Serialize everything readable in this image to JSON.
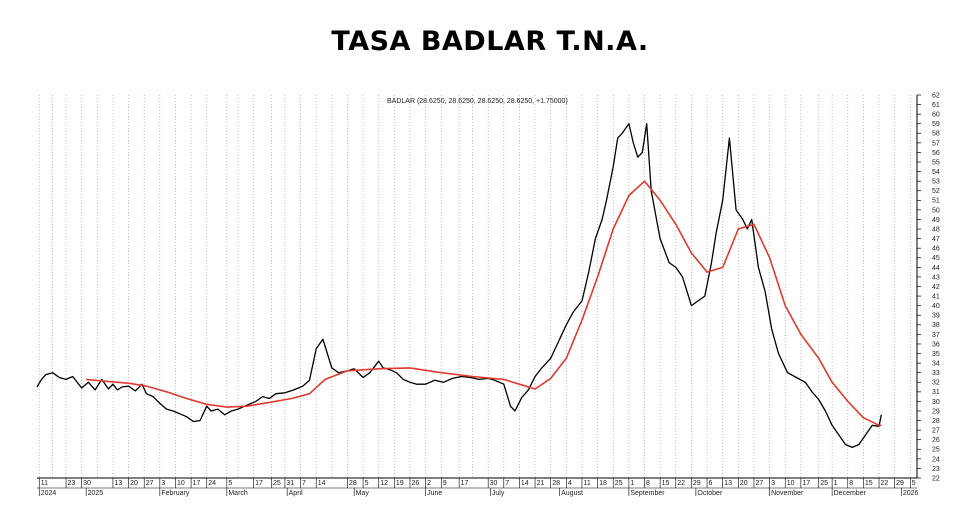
{
  "header": {
    "title": "TASA BADLAR T.N.A."
  },
  "colors": {
    "price_line": "#000000",
    "moving_average": "#e23a2e",
    "grid": "#9a9a9a",
    "axis": "#000000"
  },
  "chart_data": {
    "type": "line",
    "title": "TASA BADLAR T.N.A.",
    "legend": "BADLAR (28.6250, 28.6250, 28.6250, 28.6250, +1.75000)",
    "xlabel": "",
    "ylabel": "",
    "ylim": [
      22,
      62
    ],
    "y_ticks": [
      22,
      23,
      24,
      25,
      26,
      27,
      28,
      29,
      30,
      31,
      32,
      33,
      34,
      35,
      36,
      37,
      38,
      39,
      40,
      41,
      42,
      43,
      44,
      45,
      46,
      47,
      48,
      49,
      50,
      51,
      52,
      53,
      54,
      55,
      56,
      57,
      58,
      59,
      60,
      61,
      62
    ],
    "x_range": [
      "2024-12-10",
      "2026-01-08"
    ],
    "grid": true,
    "x_day_labels": [
      {
        "date": "2024-12-11",
        "label": "11"
      },
      {
        "date": "2024-12-23",
        "label": "23"
      },
      {
        "date": "2024-12-30",
        "label": "30"
      },
      {
        "date": "2025-01-13",
        "label": "13"
      },
      {
        "date": "2025-01-20",
        "label": "20"
      },
      {
        "date": "2025-01-27",
        "label": "27"
      },
      {
        "date": "2025-02-03",
        "label": "3"
      },
      {
        "date": "2025-02-10",
        "label": "10"
      },
      {
        "date": "2025-02-17",
        "label": "17"
      },
      {
        "date": "2025-02-24",
        "label": "24"
      },
      {
        "date": "2025-03-05",
        "label": "5"
      },
      {
        "date": "2025-03-17",
        "label": "17"
      },
      {
        "date": "2025-03-25",
        "label": "25"
      },
      {
        "date": "2025-03-31",
        "label": "31"
      },
      {
        "date": "2025-04-07",
        "label": "7"
      },
      {
        "date": "2025-04-14",
        "label": "14"
      },
      {
        "date": "2025-04-28",
        "label": "28"
      },
      {
        "date": "2025-05-05",
        "label": "5"
      },
      {
        "date": "2025-05-12",
        "label": "12"
      },
      {
        "date": "2025-05-19",
        "label": "19"
      },
      {
        "date": "2025-05-26",
        "label": "26"
      },
      {
        "date": "2025-06-02",
        "label": "2"
      },
      {
        "date": "2025-06-09",
        "label": "9"
      },
      {
        "date": "2025-06-17",
        "label": "17"
      },
      {
        "date": "2025-06-30",
        "label": "30"
      },
      {
        "date": "2025-07-07",
        "label": "7"
      },
      {
        "date": "2025-07-14",
        "label": "14"
      },
      {
        "date": "2025-07-21",
        "label": "21"
      },
      {
        "date": "2025-07-28",
        "label": "28"
      },
      {
        "date": "2025-08-04",
        "label": "4"
      },
      {
        "date": "2025-08-11",
        "label": "11"
      },
      {
        "date": "2025-08-18",
        "label": "18"
      },
      {
        "date": "2025-08-25",
        "label": "25"
      },
      {
        "date": "2025-09-01",
        "label": "1"
      },
      {
        "date": "2025-09-08",
        "label": "8"
      },
      {
        "date": "2025-09-15",
        "label": "15"
      },
      {
        "date": "2025-09-22",
        "label": "22"
      },
      {
        "date": "2025-09-29",
        "label": "29"
      },
      {
        "date": "2025-10-06",
        "label": "6"
      },
      {
        "date": "2025-10-13",
        "label": "13"
      },
      {
        "date": "2025-10-20",
        "label": "20"
      },
      {
        "date": "2025-10-27",
        "label": "27"
      },
      {
        "date": "2025-11-03",
        "label": "3"
      },
      {
        "date": "2025-11-10",
        "label": "10"
      },
      {
        "date": "2025-11-17",
        "label": "17"
      },
      {
        "date": "2025-11-25",
        "label": "25"
      },
      {
        "date": "2025-12-01",
        "label": "1"
      },
      {
        "date": "2025-12-08",
        "label": "8"
      },
      {
        "date": "2025-12-15",
        "label": "15"
      },
      {
        "date": "2025-12-22",
        "label": "22"
      },
      {
        "date": "2025-12-29",
        "label": "29"
      },
      {
        "date": "2026-01-05",
        "label": "5"
      }
    ],
    "x_month_labels": [
      {
        "date": "2024-12-11",
        "label": "2024"
      },
      {
        "date": "2025-01-01",
        "label": "2025"
      },
      {
        "date": "2025-02-03",
        "label": "February"
      },
      {
        "date": "2025-03-05",
        "label": "March"
      },
      {
        "date": "2025-04-01",
        "label": "April"
      },
      {
        "date": "2025-05-01",
        "label": "May"
      },
      {
        "date": "2025-06-02",
        "label": "June"
      },
      {
        "date": "2025-07-01",
        "label": "July"
      },
      {
        "date": "2025-08-01",
        "label": "August"
      },
      {
        "date": "2025-09-01",
        "label": "September"
      },
      {
        "date": "2025-10-01",
        "label": "October"
      },
      {
        "date": "2025-11-03",
        "label": "November"
      },
      {
        "date": "2025-12-01",
        "label": "December"
      },
      {
        "date": "2026-01-01",
        "label": "2026"
      }
    ],
    "x_gridlines": [
      "2024-12-11",
      "2024-12-17",
      "2024-12-23",
      "2024-12-30",
      "2025-01-06",
      "2025-01-13",
      "2025-01-20",
      "2025-01-27",
      "2025-02-03",
      "2025-02-10",
      "2025-02-17",
      "2025-02-24",
      "2025-03-05",
      "2025-03-10",
      "2025-03-17",
      "2025-03-25",
      "2025-03-31",
      "2025-04-07",
      "2025-04-14",
      "2025-04-21",
      "2025-04-28",
      "2025-05-05",
      "2025-05-12",
      "2025-05-19",
      "2025-05-26",
      "2025-06-02",
      "2025-06-09",
      "2025-06-17",
      "2025-06-23",
      "2025-06-30",
      "2025-07-07",
      "2025-07-14",
      "2025-07-21",
      "2025-07-28",
      "2025-08-04",
      "2025-08-11",
      "2025-08-18",
      "2025-08-25",
      "2025-09-01",
      "2025-09-08",
      "2025-09-15",
      "2025-09-22",
      "2025-09-29",
      "2025-10-06",
      "2025-10-13",
      "2025-10-20",
      "2025-10-27",
      "2025-11-03",
      "2025-11-10",
      "2025-11-17",
      "2025-11-25",
      "2025-12-01",
      "2025-12-08",
      "2025-12-15",
      "2025-12-22",
      "2025-12-29",
      "2026-01-05"
    ],
    "series": [
      {
        "name": "BADLAR",
        "x": [
          "2024-12-10",
          "2024-12-12",
          "2024-12-14",
          "2024-12-17",
          "2024-12-20",
          "2024-12-23",
          "2024-12-26",
          "2024-12-30",
          "2025-01-02",
          "2025-01-05",
          "2025-01-08",
          "2025-01-11",
          "2025-01-13",
          "2025-01-15",
          "2025-01-17",
          "2025-01-20",
          "2025-01-23",
          "2025-01-26",
          "2025-01-28",
          "2025-01-31",
          "2025-02-03",
          "2025-02-06",
          "2025-02-09",
          "2025-02-12",
          "2025-02-15",
          "2025-02-18",
          "2025-02-21",
          "2025-02-24",
          "2025-02-26",
          "2025-03-01",
          "2025-03-04",
          "2025-03-07",
          "2025-03-10",
          "2025-03-14",
          "2025-03-18",
          "2025-03-21",
          "2025-03-24",
          "2025-03-27",
          "2025-03-31",
          "2025-04-04",
          "2025-04-08",
          "2025-04-11",
          "2025-04-14",
          "2025-04-17",
          "2025-04-21",
          "2025-04-24",
          "2025-04-28",
          "2025-05-01",
          "2025-05-05",
          "2025-05-08",
          "2025-05-12",
          "2025-05-14",
          "2025-05-17",
          "2025-05-20",
          "2025-05-23",
          "2025-05-26",
          "2025-05-29",
          "2025-06-02",
          "2025-06-06",
          "2025-06-10",
          "2025-06-14",
          "2025-06-18",
          "2025-06-22",
          "2025-06-26",
          "2025-06-30",
          "2025-07-03",
          "2025-07-07",
          "2025-07-10",
          "2025-07-12",
          "2025-07-15",
          "2025-07-18",
          "2025-07-21",
          "2025-07-24",
          "2025-07-28",
          "2025-07-31",
          "2025-08-04",
          "2025-08-07",
          "2025-08-11",
          "2025-08-14",
          "2025-08-17",
          "2025-08-20",
          "2025-08-22",
          "2025-08-25",
          "2025-08-27",
          "2025-08-29",
          "2025-09-01",
          "2025-09-03",
          "2025-09-05",
          "2025-09-07",
          "2025-09-09",
          "2025-09-11",
          "2025-09-15",
          "2025-09-19",
          "2025-09-22",
          "2025-09-25",
          "2025-09-29",
          "2025-10-02",
          "2025-10-05",
          "2025-10-08",
          "2025-10-10",
          "2025-10-13",
          "2025-10-16",
          "2025-10-19",
          "2025-10-22",
          "2025-10-24",
          "2025-10-26",
          "2025-10-29",
          "2025-11-01",
          "2025-11-04",
          "2025-11-07",
          "2025-11-11",
          "2025-11-15",
          "2025-11-19",
          "2025-11-22",
          "2025-11-25",
          "2025-11-28",
          "2025-12-01",
          "2025-12-04",
          "2025-12-07",
          "2025-12-10",
          "2025-12-13",
          "2025-12-16",
          "2025-12-19",
          "2025-12-22",
          "2025-12-23"
        ],
        "y": [
          31.5,
          32.3,
          32.8,
          33.0,
          32.5,
          32.3,
          32.6,
          31.4,
          32.0,
          31.2,
          32.3,
          31.3,
          31.8,
          31.2,
          31.5,
          31.6,
          31.1,
          31.8,
          30.8,
          30.5,
          29.8,
          29.2,
          29.0,
          28.7,
          28.4,
          27.9,
          28.0,
          29.5,
          29.0,
          29.2,
          28.6,
          29.0,
          29.2,
          29.6,
          30.0,
          30.5,
          30.3,
          30.8,
          30.9,
          31.2,
          31.6,
          32.2,
          35.5,
          36.5,
          33.5,
          33.0,
          33.2,
          33.4,
          32.5,
          33.0,
          34.2,
          33.5,
          33.3,
          33.0,
          32.3,
          32.0,
          31.8,
          31.8,
          32.2,
          32.0,
          32.4,
          32.6,
          32.5,
          32.3,
          32.4,
          32.2,
          31.8,
          29.5,
          29.0,
          30.4,
          31.2,
          32.6,
          33.5,
          34.5,
          36.0,
          38.0,
          39.3,
          40.5,
          43.5,
          47.0,
          49.0,
          51.0,
          54.5,
          57.5,
          58.0,
          59.0,
          57.0,
          55.5,
          56.0,
          59.0,
          52.0,
          47.0,
          44.5,
          44.0,
          43.0,
          40.0,
          40.5,
          41.0,
          44.5,
          47.5,
          51.0,
          57.5,
          50.0,
          49.0,
          48.0,
          49.0,
          44.0,
          41.5,
          37.5,
          35.0,
          33.0,
          32.5,
          32.0,
          31.0,
          30.2,
          29.0,
          27.5,
          26.5,
          25.5,
          25.2,
          25.5,
          26.5,
          27.5,
          27.4,
          28.6
        ]
      },
      {
        "name": "",
        "x": [
          "2025-01-01",
          "2025-01-10",
          "2025-01-20",
          "2025-01-28",
          "2025-02-06",
          "2025-02-15",
          "2025-02-24",
          "2025-03-05",
          "2025-03-14",
          "2025-03-24",
          "2025-04-03",
          "2025-04-11",
          "2025-04-18",
          "2025-04-28",
          "2025-05-12",
          "2025-05-26",
          "2025-06-09",
          "2025-06-23",
          "2025-07-07",
          "2025-07-14",
          "2025-07-21",
          "2025-07-28",
          "2025-08-04",
          "2025-08-11",
          "2025-08-18",
          "2025-08-25",
          "2025-09-01",
          "2025-09-08",
          "2025-09-15",
          "2025-09-22",
          "2025-09-29",
          "2025-10-06",
          "2025-10-13",
          "2025-10-20",
          "2025-10-27",
          "2025-11-03",
          "2025-11-10",
          "2025-11-17",
          "2025-11-25",
          "2025-12-01",
          "2025-12-08",
          "2025-12-15",
          "2025-12-22",
          "2025-12-23"
        ],
        "y": [
          32.3,
          32.1,
          31.9,
          31.6,
          31.0,
          30.3,
          29.7,
          29.4,
          29.5,
          29.9,
          30.3,
          30.8,
          32.3,
          33.2,
          33.4,
          33.5,
          33.0,
          32.6,
          32.3,
          31.8,
          31.3,
          32.4,
          34.5,
          38.5,
          43.0,
          48.0,
          51.5,
          53.0,
          51.0,
          48.5,
          45.5,
          43.5,
          44.0,
          48.0,
          48.5,
          45.0,
          40.0,
          37.0,
          34.5,
          32.0,
          30.0,
          28.3,
          27.5,
          27.5
        ]
      }
    ]
  }
}
